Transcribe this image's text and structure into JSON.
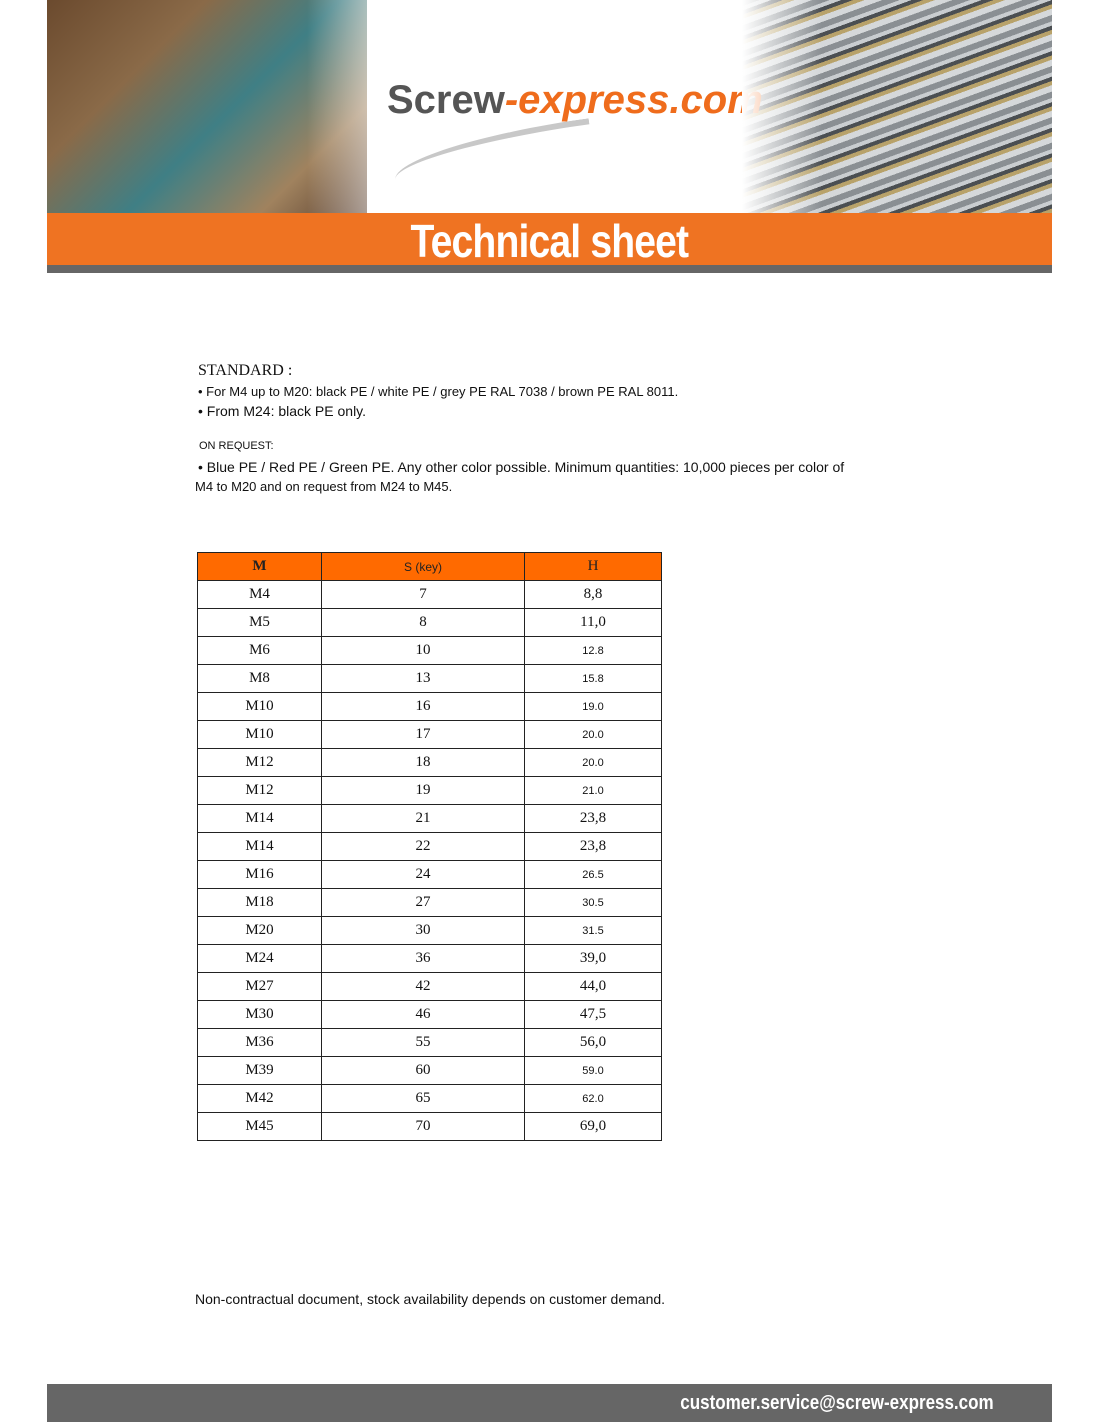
{
  "header": {
    "logo_part1": "Screw",
    "logo_part2": "-express.com",
    "banner_title": "Technical sheet"
  },
  "standard": {
    "title": "STANDARD :",
    "items": [
      "• For M4 up to M20: black PE / white PE / grey PE RAL 7038 / brown PE RAL 8011.",
      "• From M24: black PE only."
    ]
  },
  "on_request": {
    "title": "ON REQUEST:",
    "line1": "• Blue PE / Red PE / Green PE. Any other color possible. Minimum quantities: 10,000 pieces per color of",
    "line2": "M4 to M20 and on request from M24 to M45."
  },
  "table": {
    "headers": [
      "M",
      "S (key)",
      "H"
    ],
    "rows": [
      [
        "M4",
        "7",
        "8,8"
      ],
      [
        "M5",
        "8",
        "11,0"
      ],
      [
        "M6",
        "10",
        "12.8"
      ],
      [
        "M8",
        "13",
        "15.8"
      ],
      [
        "M10",
        "16",
        "19.0"
      ],
      [
        "M10",
        "17",
        "20.0"
      ],
      [
        "M12",
        "18",
        "20.0"
      ],
      [
        "M12",
        "19",
        "21.0"
      ],
      [
        "M14",
        "21",
        "23,8"
      ],
      [
        "M14",
        "22",
        "23,8"
      ],
      [
        "M16",
        "24",
        "26.5"
      ],
      [
        "M18",
        "27",
        "30.5"
      ],
      [
        "M20",
        "30",
        "31.5"
      ],
      [
        "M24",
        "36",
        "39,0"
      ],
      [
        "M27",
        "42",
        "44,0"
      ],
      [
        "M30",
        "46",
        "47,5"
      ],
      [
        "M36",
        "55",
        "56,0"
      ],
      [
        "M39",
        "60",
        "59.0"
      ],
      [
        "M42",
        "65",
        "62.0"
      ],
      [
        "M45",
        "70",
        "69,0"
      ]
    ]
  },
  "note": "Non-contractual document, stock availability depends on customer demand.",
  "footer": {
    "email": "customer.service@screw-express.com"
  },
  "colors": {
    "accent": "#ef7322",
    "table_header": "#ff6a00",
    "bar": "#666666"
  }
}
